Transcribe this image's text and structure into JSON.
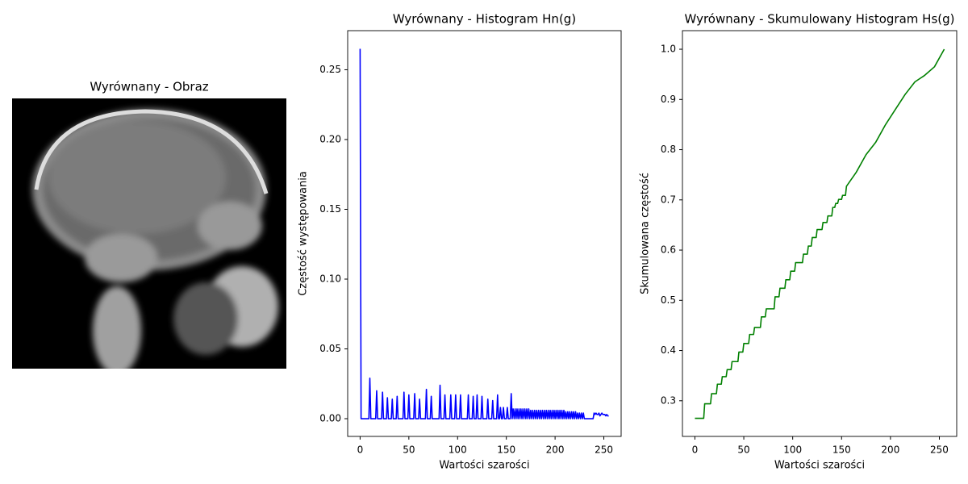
{
  "chart_data": [
    {
      "type": "image",
      "title": "Wyrównany - Obraz"
    },
    {
      "type": "line",
      "title": "Wyrównany - Histogram Hn(g)",
      "xlabel": "Wartości szarości",
      "ylabel": "Częstość występowania",
      "color": "#0000ff",
      "x": [
        0,
        1,
        9,
        10,
        11,
        16,
        17,
        18,
        22,
        23,
        24,
        27,
        28,
        29,
        32,
        33,
        34,
        37,
        38,
        39,
        44,
        45,
        46,
        49,
        50,
        51,
        55,
        56,
        57,
        60,
        61,
        62,
        67,
        68,
        69,
        72,
        73,
        74,
        81,
        82,
        83,
        86,
        87,
        88,
        92,
        93,
        94,
        97,
        98,
        99,
        102,
        103,
        104,
        110,
        111,
        112,
        115,
        116,
        117,
        119,
        120,
        121,
        124,
        125,
        126,
        130,
        131,
        132,
        135,
        136,
        137,
        140,
        141,
        142,
        143,
        144,
        145,
        146,
        147,
        148,
        150,
        151,
        152,
        154,
        155,
        156,
        157,
        158,
        159,
        160,
        161,
        162,
        163,
        164,
        165,
        166,
        167,
        168,
        169,
        170,
        171,
        172,
        173,
        174,
        175,
        176,
        177,
        178,
        179,
        180,
        181,
        182,
        183,
        184,
        185,
        186,
        187,
        188,
        189,
        190,
        191,
        192,
        193,
        194,
        195,
        196,
        197,
        198,
        199,
        200,
        201,
        202,
        203,
        204,
        205,
        206,
        207,
        208,
        209,
        210,
        211,
        212,
        213,
        214,
        215,
        216,
        217,
        218,
        219,
        220,
        221,
        222,
        223,
        224,
        225,
        226,
        227,
        228,
        229,
        230,
        239,
        240,
        241,
        242,
        243,
        244,
        245,
        246,
        247,
        248,
        249,
        250,
        251,
        252,
        253,
        254,
        255
      ],
      "values": [
        0.265,
        0,
        0,
        0.029,
        0,
        0,
        0.02,
        0,
        0,
        0.019,
        0,
        0,
        0.015,
        0,
        0,
        0.014,
        0,
        0,
        0.016,
        0,
        0,
        0.019,
        0,
        0,
        0.017,
        0,
        0,
        0.018,
        0,
        0,
        0.014,
        0,
        0,
        0.021,
        0,
        0,
        0.016,
        0,
        0,
        0.024,
        0,
        0,
        0.017,
        0,
        0,
        0.017,
        0,
        0,
        0.017,
        0,
        0,
        0.017,
        0,
        0,
        0.017,
        0,
        0,
        0.016,
        0,
        0,
        0.017,
        0,
        0,
        0.016,
        0,
        0,
        0.014,
        0,
        0,
        0.013,
        0,
        0,
        0.017,
        0,
        0,
        0.008,
        0,
        0,
        0.008,
        0,
        0,
        0.008,
        0,
        0,
        0.018,
        0,
        0.007,
        0,
        0.007,
        0,
        0.007,
        0,
        0.007,
        0,
        0.007,
        0,
        0.007,
        0,
        0.007,
        0,
        0.007,
        0,
        0.007,
        0,
        0.006,
        0,
        0.006,
        0,
        0.006,
        0,
        0.006,
        0,
        0.006,
        0,
        0.006,
        0,
        0.006,
        0,
        0.006,
        0,
        0.006,
        0,
        0.006,
        0,
        0.006,
        0,
        0.006,
        0,
        0.006,
        0,
        0.006,
        0,
        0.006,
        0,
        0.006,
        0,
        0.006,
        0,
        0.006,
        0,
        0.005,
        0,
        0.005,
        0,
        0.005,
        0,
        0.005,
        0,
        0.005,
        0,
        0.005,
        0,
        0.004,
        0,
        0.004,
        0,
        0.004,
        0,
        0.004,
        0,
        0,
        0.004,
        0.003,
        0.004,
        0.003,
        0.003,
        0.004,
        0.002,
        0.003,
        0.004,
        0.003,
        0.003,
        0.003,
        0.002,
        0.003,
        0.002,
        0.002
      ],
      "xlim": [
        -12.75,
        267.75
      ],
      "ylim": [
        -0.0127,
        0.278
      ],
      "xticks": [
        0,
        50,
        100,
        150,
        200,
        250
      ],
      "yticks": [
        {
          "value": 0,
          "label": "0.00"
        },
        {
          "value": 0.05,
          "label": "0.05"
        },
        {
          "value": 0.1,
          "label": "0.10"
        },
        {
          "value": 0.15,
          "label": "0.15"
        },
        {
          "value": 0.2,
          "label": "0.20"
        },
        {
          "value": 0.25,
          "label": "0.25"
        }
      ]
    },
    {
      "type": "line",
      "title": "Wyrównany - Skumulowany Histogram Hs(g)",
      "xlabel": "Wartości szarości",
      "ylabel": "Skumulowana częstość",
      "color": "#008000",
      "x": [
        0,
        9,
        10,
        16,
        17,
        22,
        23,
        27,
        28,
        32,
        33,
        37,
        38,
        44,
        45,
        49,
        50,
        55,
        56,
        60,
        61,
        67,
        68,
        72,
        73,
        81,
        82,
        86,
        87,
        92,
        93,
        97,
        98,
        102,
        103,
        110,
        111,
        115,
        116,
        119,
        120,
        124,
        125,
        130,
        131,
        135,
        136,
        140,
        141,
        143,
        144,
        146,
        147,
        150,
        151,
        154,
        155,
        165,
        175,
        185,
        195,
        205,
        215,
        225,
        235,
        245,
        255
      ],
      "values": [
        0.265,
        0.265,
        0.294,
        0.294,
        0.314,
        0.314,
        0.333,
        0.333,
        0.348,
        0.348,
        0.362,
        0.362,
        0.378,
        0.378,
        0.397,
        0.397,
        0.414,
        0.414,
        0.432,
        0.432,
        0.446,
        0.446,
        0.467,
        0.467,
        0.483,
        0.483,
        0.507,
        0.507,
        0.524,
        0.524,
        0.541,
        0.541,
        0.558,
        0.558,
        0.575,
        0.575,
        0.592,
        0.592,
        0.608,
        0.608,
        0.625,
        0.625,
        0.641,
        0.641,
        0.655,
        0.655,
        0.668,
        0.668,
        0.685,
        0.685,
        0.693,
        0.693,
        0.701,
        0.701,
        0.709,
        0.709,
        0.727,
        0.755,
        0.79,
        0.815,
        0.85,
        0.88,
        0.91,
        0.935,
        0.948,
        0.965,
        1.0
      ],
      "xlim": [
        -12.75,
        267.75
      ],
      "ylim": [
        0.229,
        1.037
      ],
      "xticks": [
        0,
        50,
        100,
        150,
        200,
        250
      ],
      "yticks": [
        0.3,
        0.4,
        0.5,
        0.6,
        0.7,
        0.8,
        0.9,
        {
          "value": 1,
          "label": "1.0"
        }
      ]
    }
  ]
}
